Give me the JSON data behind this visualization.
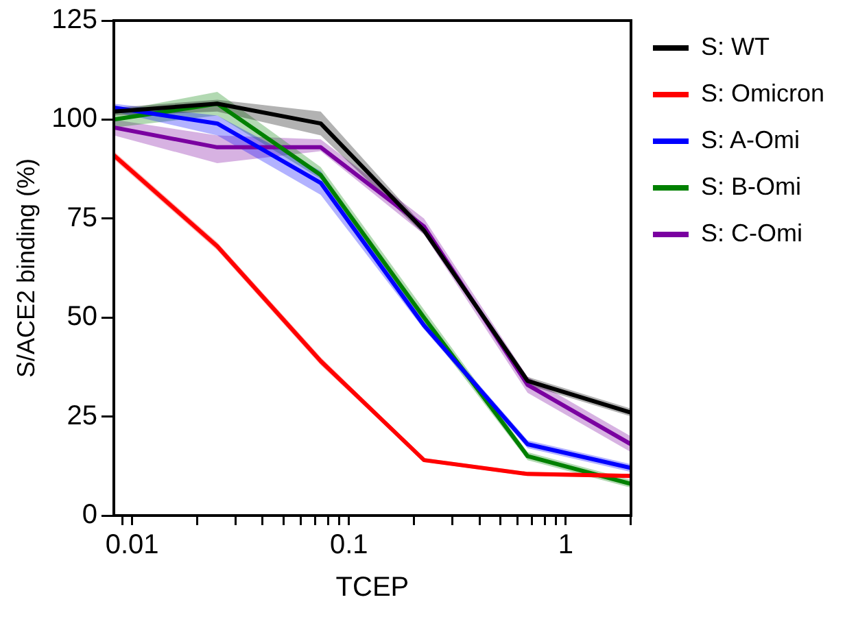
{
  "chart_data": {
    "type": "line",
    "xlabel": "TCEP",
    "ylabel": "S/ACE2 binding (%)",
    "x": [
      0.00823,
      0.0247,
      0.0741,
      0.222,
      0.667,
      2
    ],
    "series": [
      {
        "name": "S: WT",
        "color": "#000000",
        "values": [
          102,
          104,
          99,
          72,
          34,
          26
        ],
        "lower": [
          101,
          102,
          96,
          71,
          33,
          25
        ],
        "upper": [
          103,
          105,
          102,
          73,
          35,
          27
        ]
      },
      {
        "name": "S: Omicron",
        "color": "#ff0000",
        "values": [
          91,
          68,
          39,
          14,
          10.5,
          10
        ],
        "lower": [
          90,
          67,
          38,
          13.5,
          10,
          9.5
        ],
        "upper": [
          92,
          69,
          40,
          14.5,
          11,
          10.5
        ]
      },
      {
        "name": "S: A-Omi",
        "color": "#0000ff",
        "values": [
          103,
          99,
          84,
          48,
          18,
          12
        ],
        "lower": [
          102,
          96,
          81,
          47,
          17,
          11
        ],
        "upper": [
          104,
          101,
          87,
          49,
          19,
          13
        ]
      },
      {
        "name": "S: B-Omi",
        "color": "#008000",
        "values": [
          100,
          104,
          86,
          50,
          15,
          8
        ],
        "lower": [
          98,
          101,
          85,
          48,
          14,
          7
        ],
        "upper": [
          102,
          107,
          88,
          52,
          16,
          9
        ]
      },
      {
        "name": "S: C-Omi",
        "color": "#7a00a0",
        "values": [
          98,
          93,
          93,
          73,
          33,
          18
        ],
        "lower": [
          96,
          89,
          92,
          71,
          31,
          16
        ],
        "upper": [
          100,
          96,
          95,
          75,
          35,
          20
        ]
      }
    ],
    "log": "x",
    "xlim": [
      0.00823,
      2
    ],
    "xticks": [
      {
        "value": 0.009,
        "label": null
      },
      0.01,
      {
        "value": 0.02,
        "label": null
      },
      {
        "value": 0.03,
        "label": null
      },
      {
        "value": 0.04,
        "label": null
      },
      {
        "value": 0.05,
        "label": null
      },
      {
        "value": 0.06,
        "label": null
      },
      {
        "value": 0.07,
        "label": null
      },
      {
        "value": 0.08,
        "label": null
      },
      {
        "value": 0.09,
        "label": null
      },
      0.1,
      {
        "value": 0.2,
        "label": null
      },
      {
        "value": 0.3,
        "label": null
      },
      {
        "value": 0.4,
        "label": null
      },
      {
        "value": 0.5,
        "label": null
      },
      {
        "value": 0.6,
        "label": null
      },
      {
        "value": 0.7,
        "label": null
      },
      {
        "value": 0.8,
        "label": null
      },
      {
        "value": 0.9,
        "label": null
      },
      1,
      {
        "value": 2,
        "label": null
      }
    ],
    "ylim": [
      0,
      125
    ],
    "yticks": [
      0,
      25,
      50,
      75,
      100,
      125
    ],
    "grid": false,
    "legend": "right",
    "marker": "none",
    "line_style": "solid"
  }
}
